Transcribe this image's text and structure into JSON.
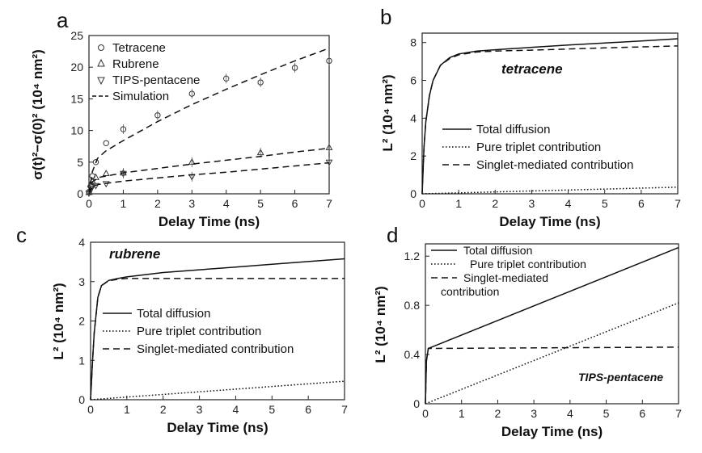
{
  "chart_data": [
    {
      "panel": "a",
      "type": "scatter",
      "xlabel": "Delay Time (ns)",
      "ylabel": "σ(t)²−σ(0)² (10⁴ nm²)",
      "xlim": [
        0,
        7
      ],
      "ylim": [
        0,
        25
      ],
      "xticks": [
        "0",
        "1",
        "2",
        "3",
        "4",
        "5",
        "6",
        "7"
      ],
      "yticks": [
        "0",
        "5",
        "10",
        "15",
        "20",
        "25"
      ],
      "legend": [
        "Tetracene",
        "Rubrene",
        "TIPS-pentacene",
        "Simulation"
      ],
      "series": [
        {
          "name": "Tetracene",
          "marker": "circle",
          "x": [
            0,
            0.05,
            0.1,
            0.2,
            0.5,
            1,
            2,
            3,
            4,
            5,
            6,
            7
          ],
          "y": [
            0.3,
            1.2,
            2.8,
            5.0,
            8.0,
            10.2,
            12.4,
            15.8,
            18.2,
            17.6,
            19.9,
            21.0
          ]
        },
        {
          "name": "Rubrene",
          "marker": "triangle-up",
          "x": [
            0,
            0.05,
            0.1,
            0.2,
            0.5,
            1,
            3,
            5,
            7
          ],
          "y": [
            0.2,
            1.5,
            2.0,
            2.6,
            3.2,
            3.3,
            5.0,
            6.5,
            7.3
          ]
        },
        {
          "name": "TIPS-pentacene",
          "marker": "triangle-down",
          "x": [
            0,
            0.05,
            0.1,
            0.2,
            0.5,
            1,
            3,
            7
          ],
          "y": [
            0.1,
            0.8,
            1.1,
            1.3,
            1.6,
            3.2,
            2.7,
            5.0
          ]
        },
        {
          "name": "Simulation (tetracene)",
          "style": "dashed",
          "x": [
            0,
            0.1,
            0.25,
            0.5,
            1,
            2,
            3,
            4,
            5,
            6,
            7
          ],
          "y": [
            0,
            3.5,
            5.6,
            6.8,
            8.4,
            11.4,
            14.1,
            16.5,
            18.8,
            21.0,
            23.0
          ]
        },
        {
          "name": "Simulation (rubrene)",
          "style": "dashed",
          "x": [
            0,
            0.1,
            0.3,
            0.7,
            1,
            2,
            3,
            4,
            5,
            6,
            7
          ],
          "y": [
            0,
            1.9,
            2.6,
            3.0,
            3.3,
            4.0,
            4.7,
            5.3,
            5.9,
            6.6,
            7.2
          ]
        },
        {
          "name": "Simulation (TIPS-pentacene)",
          "style": "dashed",
          "x": [
            0,
            0.1,
            0.3,
            1,
            2,
            3,
            4,
            5,
            6,
            7
          ],
          "y": [
            0,
            1.2,
            1.5,
            2.0,
            2.5,
            3.0,
            3.4,
            3.9,
            4.4,
            4.9
          ]
        }
      ]
    },
    {
      "panel": "b",
      "type": "line",
      "annotation": "tetracene",
      "xlabel": "Delay Time (ns)",
      "ylabel": "L² (10⁴ nm²)",
      "xlim": [
        0,
        7
      ],
      "ylim": [
        0,
        8.5
      ],
      "xticks": [
        "0",
        "1",
        "2",
        "3",
        "4",
        "5",
        "6",
        "7"
      ],
      "yticks": [
        "0",
        "2",
        "4",
        "6",
        "8"
      ],
      "legend": [
        "Total diffusion",
        "Pure triplet contribution",
        "Singlet-mediated contribution"
      ],
      "series": [
        {
          "name": "Total diffusion",
          "style": "solid",
          "x": [
            0,
            0.05,
            0.1,
            0.2,
            0.3,
            0.5,
            0.75,
            1,
            1.5,
            2,
            3,
            4,
            5,
            6,
            7
          ],
          "y": [
            0,
            2.5,
            3.8,
            5.2,
            6.0,
            6.8,
            7.2,
            7.4,
            7.55,
            7.62,
            7.75,
            7.87,
            7.98,
            8.08,
            8.2
          ]
        },
        {
          "name": "Pure triplet contribution",
          "style": "dotted",
          "x": [
            0,
            7
          ],
          "y": [
            0,
            0.35
          ]
        },
        {
          "name": "Singlet-mediated contribution",
          "style": "dashed",
          "x": [
            0,
            0.05,
            0.1,
            0.2,
            0.3,
            0.5,
            0.75,
            1,
            1.5,
            2,
            3,
            4,
            5,
            6,
            7
          ],
          "y": [
            0,
            2.5,
            3.8,
            5.2,
            6.0,
            6.8,
            7.15,
            7.35,
            7.5,
            7.55,
            7.6,
            7.66,
            7.72,
            7.77,
            7.82
          ]
        }
      ]
    },
    {
      "panel": "c",
      "type": "line",
      "annotation": "rubrene",
      "xlabel": "Delay Time (ns)",
      "ylabel": "L² (10⁴ nm²)",
      "xlim": [
        0,
        7
      ],
      "ylim": [
        0,
        4
      ],
      "xticks": [
        "0",
        "1",
        "2",
        "3",
        "4",
        "5",
        "6",
        "7"
      ],
      "yticks": [
        "0",
        "1",
        "2",
        "3",
        "4"
      ],
      "legend": [
        "Total diffusion",
        "Pure triplet contribution",
        "Singlet-mediated contribution"
      ],
      "series": [
        {
          "name": "Total diffusion",
          "style": "solid",
          "x": [
            0,
            0.05,
            0.1,
            0.2,
            0.3,
            0.5,
            0.75,
            1,
            2,
            3,
            4,
            5,
            6,
            7
          ],
          "y": [
            0,
            0.9,
            1.7,
            2.6,
            2.9,
            3.03,
            3.08,
            3.12,
            3.23,
            3.3,
            3.37,
            3.44,
            3.51,
            3.58
          ]
        },
        {
          "name": "Pure triplet contribution",
          "style": "dotted",
          "x": [
            0,
            7
          ],
          "y": [
            0,
            0.47
          ]
        },
        {
          "name": "Singlet-mediated contribution",
          "style": "dashed",
          "x": [
            0,
            0.05,
            0.1,
            0.2,
            0.3,
            0.5,
            0.75,
            1,
            7
          ],
          "y": [
            0,
            0.9,
            1.7,
            2.6,
            2.9,
            3.02,
            3.06,
            3.08,
            3.08
          ]
        }
      ]
    },
    {
      "panel": "d",
      "type": "line",
      "annotation": "TIPS-pentacene",
      "xlabel": "Delay Time (ns)",
      "ylabel": "L² (10⁴ nm²)",
      "xlim": [
        0,
        7
      ],
      "ylim": [
        0,
        1.3
      ],
      "xticks": [
        "0",
        "1",
        "2",
        "3",
        "4",
        "5",
        "6",
        "7"
      ],
      "yticks": [
        "0",
        "0.4",
        "0.8",
        "1.2"
      ],
      "legend": [
        "Total diffusion",
        "Pure triplet contribution",
        "Singlet-mediated",
        "contribution"
      ],
      "series": [
        {
          "name": "Total diffusion",
          "style": "solid",
          "x": [
            0,
            0.03,
            0.08,
            7
          ],
          "y": [
            0,
            0.35,
            0.45,
            1.27
          ]
        },
        {
          "name": "Pure triplet contribution",
          "style": "dotted",
          "x": [
            0,
            7
          ],
          "y": [
            0,
            0.82
          ]
        },
        {
          "name": "Singlet-mediated contribution",
          "style": "dashed",
          "x": [
            0,
            0.03,
            0.08,
            7
          ],
          "y": [
            0,
            0.35,
            0.45,
            0.46
          ]
        }
      ]
    }
  ],
  "panels": {
    "a": {
      "label": "a"
    },
    "b": {
      "label": "b"
    },
    "c": {
      "label": "c"
    },
    "d": {
      "label": "d"
    }
  }
}
